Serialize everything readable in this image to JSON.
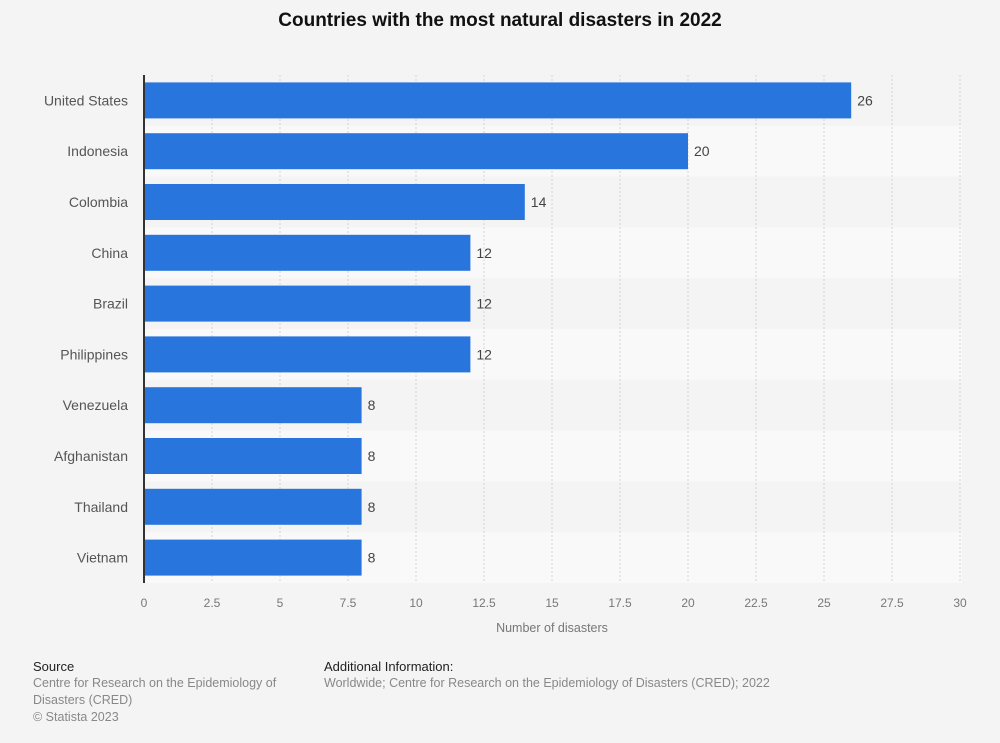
{
  "chart_data": {
    "type": "bar",
    "orientation": "horizontal",
    "title": "Countries with the most natural disasters in 2022",
    "categories": [
      "United States",
      "Indonesia",
      "Colombia",
      "China",
      "Brazil",
      "Philippines",
      "Venezuela",
      "Afghanistan",
      "Thailand",
      "Vietnam"
    ],
    "values": [
      26,
      20,
      14,
      12,
      12,
      12,
      8,
      8,
      8,
      8
    ],
    "xlabel": "Number of disasters",
    "ylabel": "",
    "xlim": [
      0,
      30
    ],
    "xticks": [
      "0",
      "2.5",
      "5",
      "7.5",
      "10",
      "12.5",
      "15",
      "17.5",
      "20",
      "22.5",
      "25",
      "27.5",
      "30"
    ],
    "xtick_values": [
      0,
      2.5,
      5,
      7.5,
      10,
      12.5,
      15,
      17.5,
      20,
      22.5,
      25,
      27.5,
      30
    ],
    "grid": true,
    "bar_color": "#2876dd",
    "data_labels": true
  },
  "footer": {
    "source_heading": "Source",
    "source_lines": [
      "Centre for Research on the Epidemiology of Disasters (CRED)",
      "© Statista 2023"
    ],
    "info_heading": "Additional Information:",
    "info_text": "Worldwide; Centre for Research on the Epidemiology of Disasters (CRED); 2022"
  }
}
